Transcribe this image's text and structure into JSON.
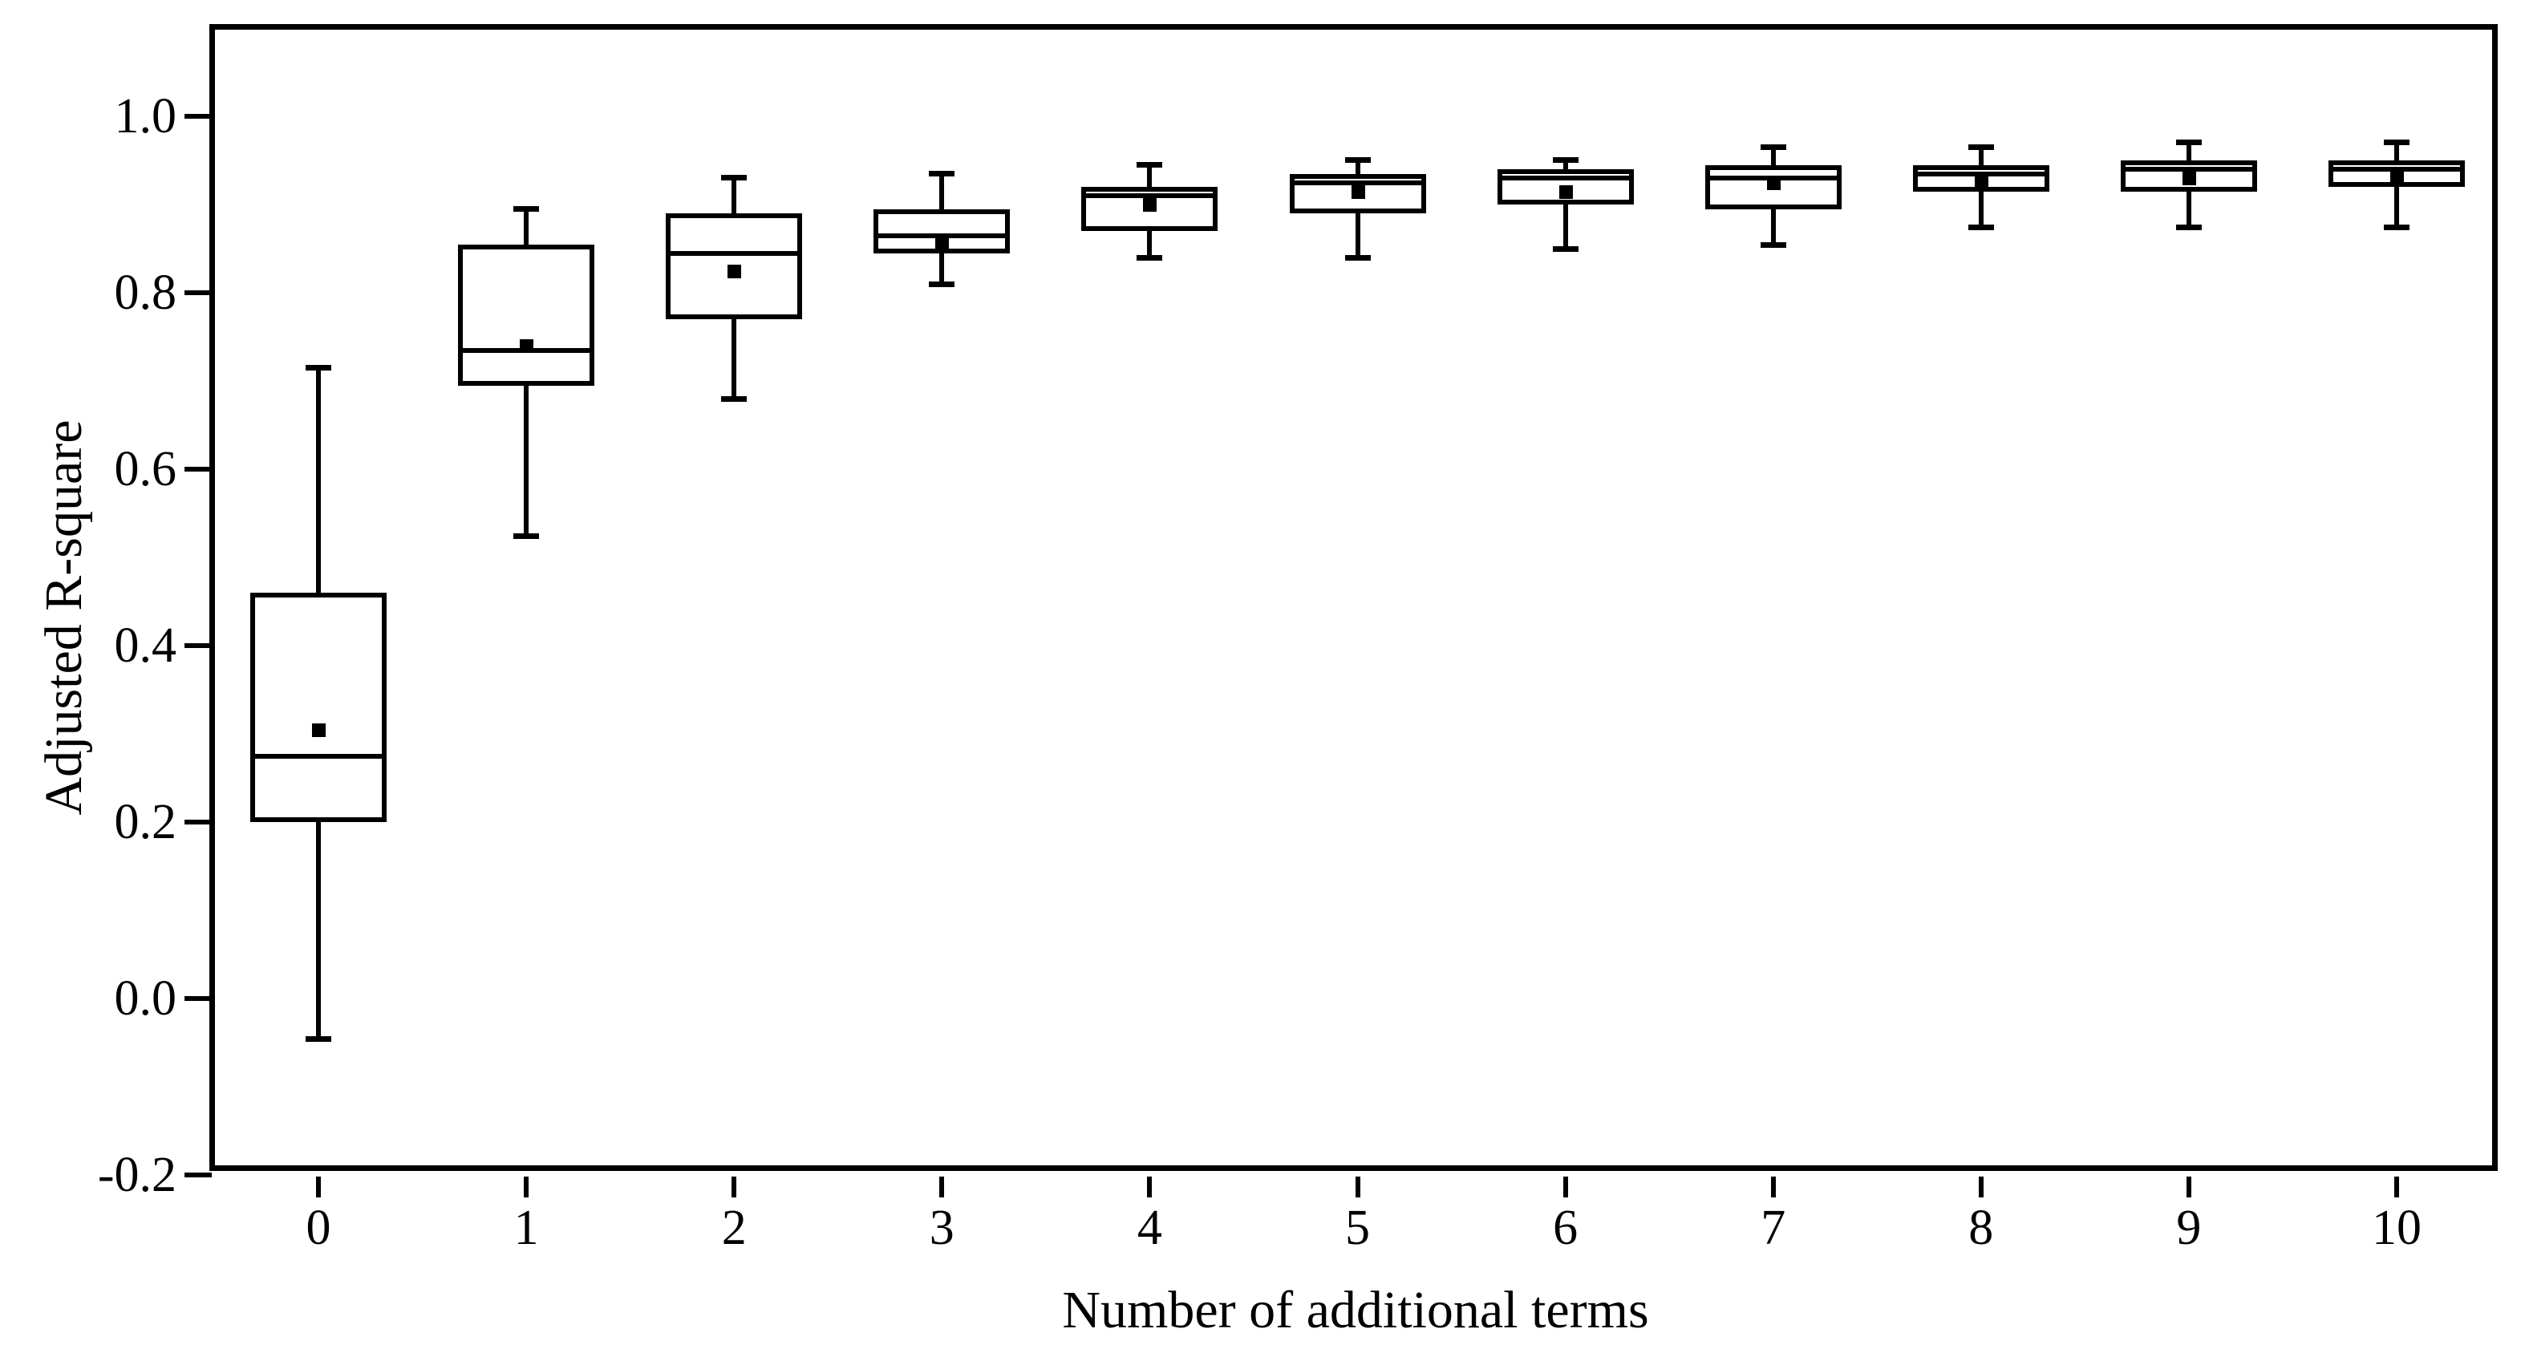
{
  "chart_data": {
    "type": "box",
    "title": "",
    "colors": {
      "line": "#000000",
      "fill": "#ffffff",
      "background": "#ffffff"
    },
    "grid": "off",
    "legend": "none",
    "y_axis": {
      "title": "Adjusted R-square",
      "ylim": [
        -0.2,
        1.1
      ],
      "tick_step": 0.2,
      "ticks": [
        {
          "v": 1.0,
          "label": "1.0"
        },
        {
          "v": 0.8,
          "label": "0.8"
        },
        {
          "v": 0.6,
          "label": "0.6"
        },
        {
          "v": 0.4,
          "label": "0.4"
        },
        {
          "v": 0.2,
          "label": "0.2"
        },
        {
          "v": 0.0,
          "label": "0.0"
        },
        {
          "v": -0.2,
          "label": "-0.2"
        }
      ]
    },
    "x_axis": {
      "title": "Number of additional terms",
      "categories": [
        "0",
        "1",
        "2",
        "3",
        "4",
        "5",
        "6",
        "7",
        "8",
        "9",
        "10"
      ]
    },
    "boxes": [
      {
        "category": "0",
        "whisker_low": -0.045,
        "q1": 0.2,
        "median": 0.275,
        "mean": 0.305,
        "q3": 0.46,
        "whisker_high": 0.715
      },
      {
        "category": "1",
        "whisker_low": 0.525,
        "q1": 0.695,
        "median": 0.735,
        "mean": 0.74,
        "q3": 0.855,
        "whisker_high": 0.895
      },
      {
        "category": "2",
        "whisker_low": 0.68,
        "q1": 0.77,
        "median": 0.845,
        "mean": 0.825,
        "q3": 0.89,
        "whisker_high": 0.93
      },
      {
        "category": "3",
        "whisker_low": 0.81,
        "q1": 0.845,
        "median": 0.865,
        "mean": 0.855,
        "q3": 0.895,
        "whisker_high": 0.935
      },
      {
        "category": "4",
        "whisker_low": 0.84,
        "q1": 0.87,
        "median": 0.91,
        "mean": 0.9,
        "q3": 0.92,
        "whisker_high": 0.945
      },
      {
        "category": "5",
        "whisker_low": 0.84,
        "q1": 0.89,
        "median": 0.925,
        "mean": 0.915,
        "q3": 0.935,
        "whisker_high": 0.95
      },
      {
        "category": "6",
        "whisker_low": 0.85,
        "q1": 0.9,
        "median": 0.93,
        "mean": 0.915,
        "q3": 0.94,
        "whisker_high": 0.95
      },
      {
        "category": "7",
        "whisker_low": 0.855,
        "q1": 0.895,
        "median": 0.93,
        "mean": 0.925,
        "q3": 0.945,
        "whisker_high": 0.965
      },
      {
        "category": "8",
        "whisker_low": 0.875,
        "q1": 0.915,
        "median": 0.935,
        "mean": 0.925,
        "q3": 0.945,
        "whisker_high": 0.965
      },
      {
        "category": "9",
        "whisker_low": 0.875,
        "q1": 0.915,
        "median": 0.94,
        "mean": 0.93,
        "q3": 0.95,
        "whisker_high": 0.97
      },
      {
        "category": "10",
        "whisker_low": 0.875,
        "q1": 0.92,
        "median": 0.94,
        "mean": 0.93,
        "q3": 0.95,
        "whisker_high": 0.97
      }
    ]
  }
}
